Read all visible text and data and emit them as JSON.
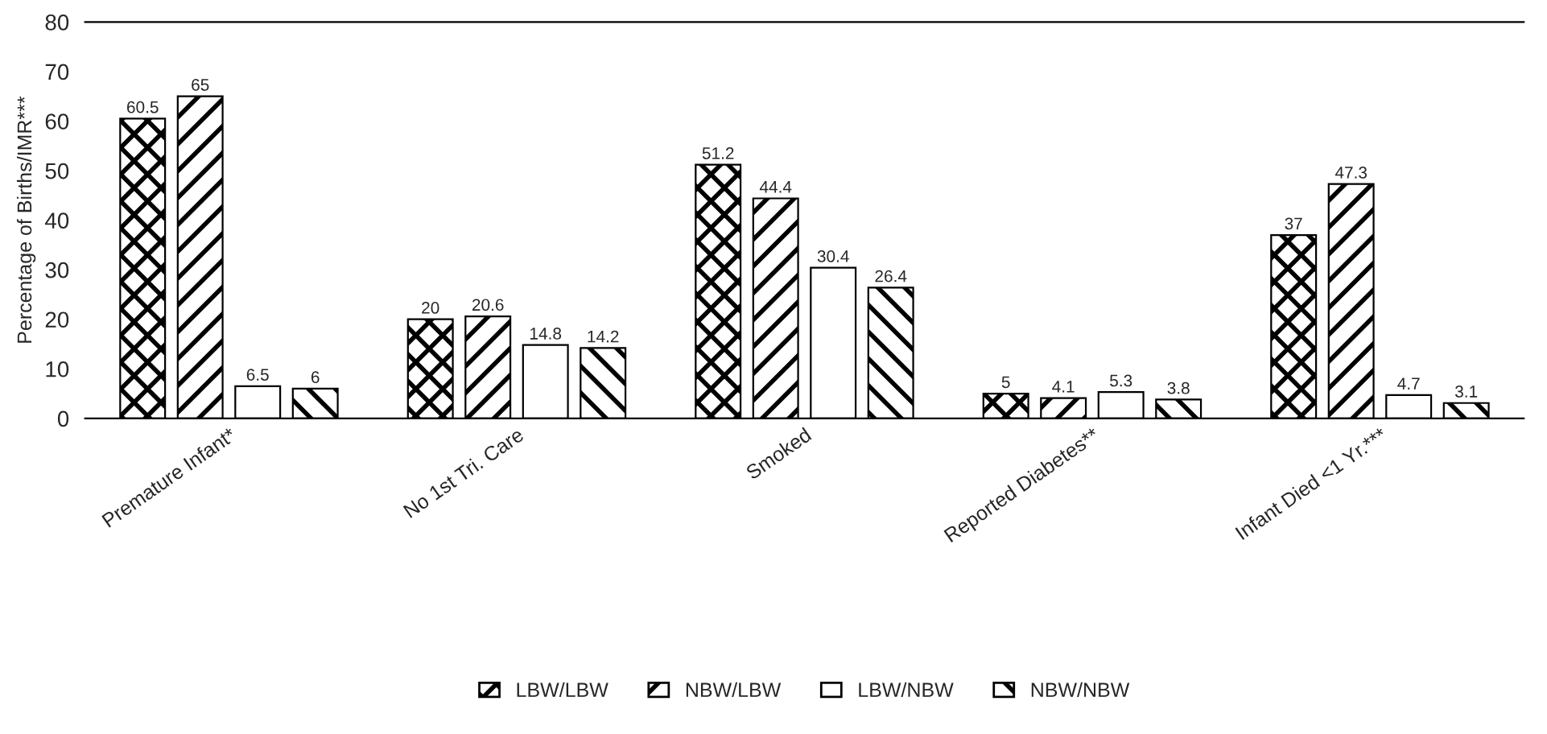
{
  "chart_data": {
    "type": "bar",
    "ylabel": "Percentage of Births/IMR***",
    "categories": [
      "Premature Infant*",
      "No 1st Tri. Care",
      "Smoked",
      "Reported Diabetes**",
      "Infant Died <1 Yr.***"
    ],
    "series": [
      {
        "name": "LBW/LBW",
        "color": "#000000",
        "values": [
          60.5,
          20,
          51.2,
          5,
          37
        ]
      },
      {
        "name": "NBW/LBW",
        "color": "#000000",
        "values": [
          65,
          20.6,
          44.4,
          4.1,
          47.3
        ]
      },
      {
        "name": "LBW/NBW",
        "color": "#ffffff",
        "values": [
          6.5,
          14.8,
          30.4,
          5.3,
          4.7
        ]
      },
      {
        "name": "NBW/NBW",
        "color": "#000000",
        "values": [
          6,
          14.2,
          26.4,
          3.8,
          3.1
        ]
      }
    ],
    "ylim": [
      0,
      80
    ],
    "yticks": [
      0,
      10,
      20,
      30,
      40,
      50,
      60,
      70,
      80
    ],
    "data_labels": true,
    "grid": false,
    "legend": "bottom"
  }
}
